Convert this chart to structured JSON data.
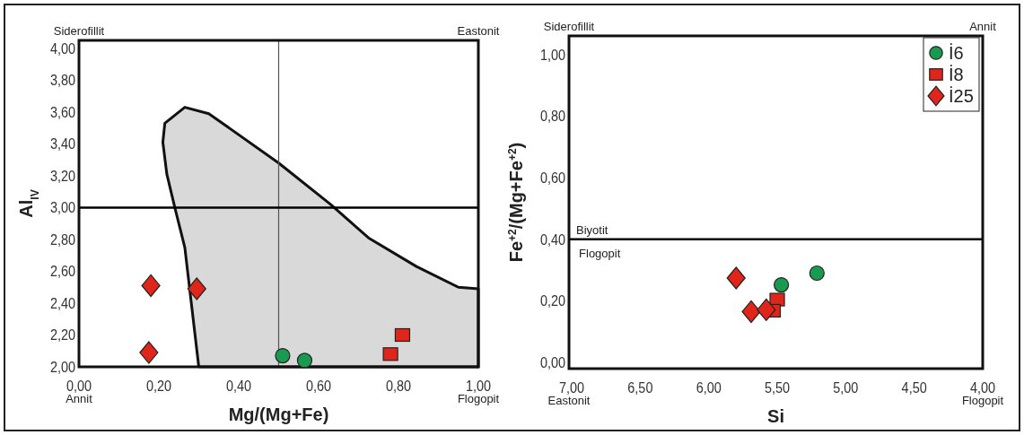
{
  "chart_data": [
    {
      "type": "scatter",
      "xlabel": "Mg/(Mg+Fe)",
      "ylabel": "Al$_{IV}$",
      "xlim": [
        0,
        1
      ],
      "ylim": [
        2,
        4.05
      ],
      "xticks": [
        {
          "value": 0,
          "label": "0,00"
        },
        {
          "value": 0.2,
          "label": "0,20"
        },
        {
          "value": 0.4,
          "label": "0,40"
        },
        {
          "value": 0.6,
          "label": "0,60"
        },
        {
          "value": 0.8,
          "label": "0,80"
        },
        {
          "value": 1,
          "label": "1,00"
        }
      ],
      "yticks": [
        {
          "value": 2,
          "label": "2,00"
        },
        {
          "value": 2.2,
          "label": "2,20"
        },
        {
          "value": 2.4,
          "label": "2,40"
        },
        {
          "value": 2.6,
          "label": "2,60"
        },
        {
          "value": 2.8,
          "label": "2,80"
        },
        {
          "value": 3,
          "label": "3,00"
        },
        {
          "value": 3.2,
          "label": "3,20"
        },
        {
          "value": 3.4,
          "label": "3,40"
        },
        {
          "value": 3.6,
          "label": "3,60"
        },
        {
          "value": 3.8,
          "label": "3,80"
        },
        {
          "value": 4,
          "label": "4,00"
        }
      ],
      "series": [
        {
          "type": "area",
          "color": "#d9d9d9",
          "x": [
            0.3,
            0.265,
            0.24,
            0.22,
            0.21,
            0.215,
            0.265,
            0.325,
            0.5,
            0.63,
            0.725,
            0.845,
            0.95,
            1,
            1,
            0.3
          ],
          "values": [
            2,
            2.75,
            3.0,
            3.21,
            3.41,
            3.53,
            3.63,
            3.59,
            3.28,
            3.02,
            2.81,
            2.63,
            2.5,
            2.49,
            2,
            2
          ]
        },
        {
          "color": "#1a9a50",
          "marker": "circle",
          "x": [
            0.51,
            0.565
          ],
          "values": [
            2.07,
            2.04
          ]
        },
        {
          "color": "#e0261b",
          "marker": "square",
          "x": [
            0.81,
            0.78
          ],
          "values": [
            2.2,
            2.08
          ]
        },
        {
          "color": "#e0261b",
          "marker": "diamond",
          "x": [
            0.18,
            0.295,
            0.175
          ],
          "values": [
            2.51,
            2.49,
            2.09
          ]
        }
      ],
      "ref_lines": [
        {
          "axis": "x",
          "value": 0.5,
          "color": "#555555"
        },
        {
          "axis": "y",
          "value": 3,
          "color": "#000000"
        }
      ],
      "annotations": [
        "Siderofillit",
        "Eastonit",
        "Annit",
        "Flogopit"
      ],
      "grid": false,
      "legend": false
    },
    {
      "type": "scatter",
      "xlabel": "Si",
      "ylabel": "Fe$^{+2}$/(Mg+Fe$^{+2}$)",
      "xlim": [
        7.02,
        4
      ],
      "ylim": [
        -0.02,
        1.06
      ],
      "xticks": [
        {
          "value": 7,
          "label": "7,00"
        },
        {
          "value": 6.5,
          "label": "6,50"
        },
        {
          "value": 6,
          "label": "6,00"
        },
        {
          "value": 5.5,
          "label": "5,50"
        },
        {
          "value": 5,
          "label": "5,00"
        },
        {
          "value": 4.5,
          "label": "4,50"
        },
        {
          "value": 4,
          "label": "4,00"
        }
      ],
      "yticks": [
        {
          "value": 0,
          "label": "0,00"
        },
        {
          "value": 0.2,
          "label": "0,20"
        },
        {
          "value": 0.4,
          "label": "0,40"
        },
        {
          "value": 0.6,
          "label": "0,60"
        },
        {
          "value": 0.8,
          "label": "0,80"
        },
        {
          "value": 1,
          "label": "1,00"
        }
      ],
      "series": [
        {
          "name": "İ6",
          "color": "#1a9a50",
          "marker": "circle",
          "x": [
            5.47,
            5.21
          ],
          "values": [
            0.252,
            0.29
          ]
        },
        {
          "name": "İ8",
          "color": "#e0261b",
          "marker": "square",
          "x": [
            5.5,
            5.53
          ],
          "values": [
            0.204,
            0.168
          ]
        },
        {
          "name": "İ25",
          "color": "#e0261b",
          "marker": "diamond",
          "x": [
            5.8,
            5.69,
            5.58
          ],
          "values": [
            0.274,
            0.165,
            0.171
          ]
        }
      ],
      "ref_lines": [
        {
          "axis": "y",
          "value": 0.4,
          "label": "Biyotit",
          "color": "#000000"
        }
      ],
      "annotations": [
        "Siderofillit",
        "Annit",
        "Eastonit",
        "Flogopit",
        {
          "text": "Flogopit",
          "x": 7,
          "y": 0.4
        }
      ],
      "grid": false,
      "legend": "top right"
    }
  ]
}
